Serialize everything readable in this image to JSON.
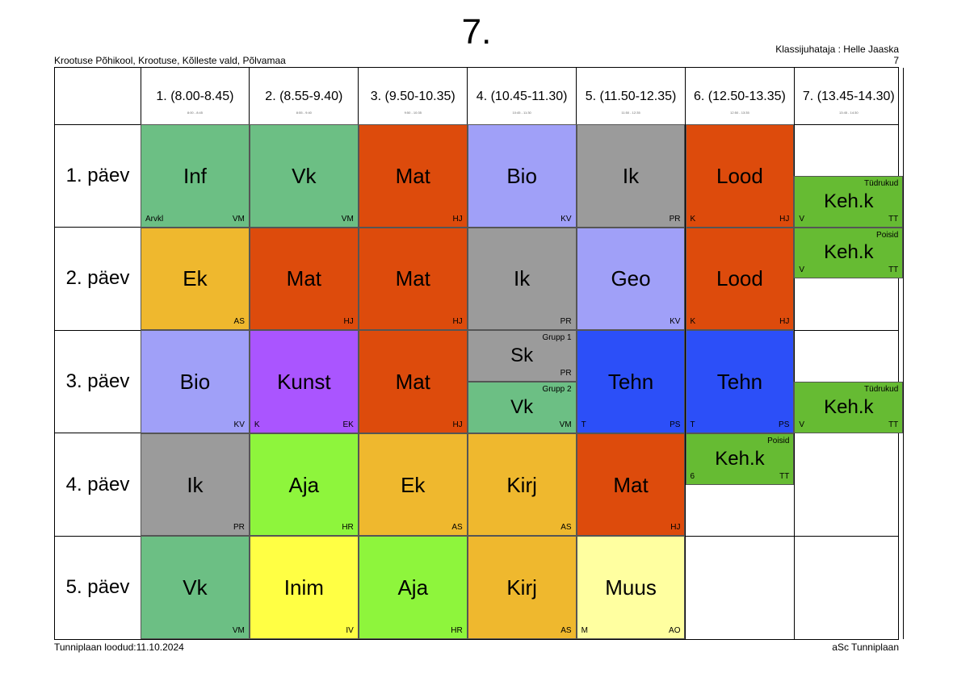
{
  "header": {
    "title": "7.",
    "school": "Krootuse Põhikool, Krootuse, Kõlleste vald, Põlvamaa",
    "teacher": "Klassijuhataja : Helle Jaaska",
    "class_number": "7"
  },
  "footer": {
    "created": "Tunniplaan loodud:11.10.2024",
    "software": "aSc Tunniplaan"
  },
  "periods": [
    {
      "label": "1. (8.00-8.45)",
      "sub": "8:00 - 8:45"
    },
    {
      "label": "2. (8.55-9.40)",
      "sub": "8:55 - 9:40"
    },
    {
      "label": "3. (9.50-10.35)",
      "sub": "9:50 - 10:35"
    },
    {
      "label": "4. (10.45-11.30)",
      "sub": "10:45 - 11:30"
    },
    {
      "label": "5. (11.50-12.35)",
      "sub": "11:50 - 12:35"
    },
    {
      "label": "6. (12.50-13.35)",
      "sub": "12:50 - 13:35"
    },
    {
      "label": "7. (13.45-14.30)",
      "sub": "13:45 - 14:30"
    }
  ],
  "days": [
    "1. päev",
    "2. päev",
    "3. päev",
    "4. päev",
    "5. päev"
  ],
  "colors": {
    "green": "#6cbf84",
    "red": "#dd4b0c",
    "lavender": "#a0a0f8",
    "gray": "#9b9b9b",
    "orange": "#efb82e",
    "purple": "#aa55ff",
    "blue": "#2c4ff8",
    "lime": "#8ef53c",
    "yellow": "#ffff44",
    "paleyellow": "#ffffa0",
    "pe": "#66bb33"
  },
  "lessons": [
    {
      "day": 0,
      "period": 0,
      "subject": "Inf",
      "teacher": "VM",
      "room": "Arvkl",
      "color": "#6cbf84"
    },
    {
      "day": 0,
      "period": 1,
      "subject": "Vk",
      "teacher": "VM",
      "color": "#6cbf84"
    },
    {
      "day": 0,
      "period": 2,
      "subject": "Mat",
      "teacher": "HJ",
      "color": "#dd4b0c"
    },
    {
      "day": 0,
      "period": 3,
      "subject": "Bio",
      "teacher": "KV",
      "color": "#a0a0f8"
    },
    {
      "day": 0,
      "period": 4,
      "subject": "Ik",
      "teacher": "PR",
      "color": "#9b9b9b"
    },
    {
      "day": 0,
      "period": 5,
      "subject": "Lood",
      "teacher": "HJ",
      "room": "K",
      "color": "#dd4b0c"
    },
    {
      "day": 0,
      "period": 6,
      "subject": "Keh.k",
      "teacher": "TT",
      "room": "V",
      "group": "Tüdrukud",
      "color": "#66bb33",
      "slot": "bottom"
    },
    {
      "day": 1,
      "period": 0,
      "subject": "Ek",
      "teacher": "AS",
      "color": "#efb82e"
    },
    {
      "day": 1,
      "period": 1,
      "subject": "Mat",
      "teacher": "HJ",
      "color": "#dd4b0c"
    },
    {
      "day": 1,
      "period": 2,
      "subject": "Mat",
      "teacher": "HJ",
      "color": "#dd4b0c"
    },
    {
      "day": 1,
      "period": 3,
      "subject": "Ik",
      "teacher": "PR",
      "color": "#9b9b9b"
    },
    {
      "day": 1,
      "period": 4,
      "subject": "Geo",
      "teacher": "KV",
      "color": "#a0a0f8"
    },
    {
      "day": 1,
      "period": 5,
      "subject": "Lood",
      "teacher": "HJ",
      "room": "K",
      "color": "#dd4b0c"
    },
    {
      "day": 1,
      "period": 6,
      "subject": "Keh.k",
      "teacher": "TT",
      "room": "V",
      "group": "Poisid",
      "color": "#66bb33",
      "slot": "top"
    },
    {
      "day": 2,
      "period": 0,
      "subject": "Bio",
      "teacher": "KV",
      "color": "#a0a0f8"
    },
    {
      "day": 2,
      "period": 1,
      "subject": "Kunst",
      "teacher": "EK",
      "room": "K",
      "color": "#aa55ff"
    },
    {
      "day": 2,
      "period": 2,
      "subject": "Mat",
      "teacher": "HJ",
      "color": "#dd4b0c"
    },
    {
      "day": 2,
      "period": 3,
      "subject": "Sk",
      "teacher": "PR",
      "group": "Grupp 1",
      "color": "#9b9b9b",
      "slot": "top"
    },
    {
      "day": 2,
      "period": 3,
      "subject": "Vk",
      "teacher": "VM",
      "group": "Grupp 2",
      "color": "#6cbf84",
      "slot": "bottom"
    },
    {
      "day": 2,
      "period": 4,
      "subject": "Tehn",
      "teacher": "PS",
      "room": "T",
      "color": "#2c4ff8"
    },
    {
      "day": 2,
      "period": 5,
      "subject": "Tehn",
      "teacher": "PS",
      "room": "T",
      "color": "#2c4ff8"
    },
    {
      "day": 2,
      "period": 6,
      "subject": "Keh.k",
      "teacher": "TT",
      "room": "V",
      "group": "Tüdrukud",
      "color": "#66bb33",
      "slot": "bottom"
    },
    {
      "day": 3,
      "period": 0,
      "subject": "Ik",
      "teacher": "PR",
      "color": "#9b9b9b"
    },
    {
      "day": 3,
      "period": 1,
      "subject": "Aja",
      "teacher": "HR",
      "color": "#8ef53c"
    },
    {
      "day": 3,
      "period": 2,
      "subject": "Ek",
      "teacher": "AS",
      "color": "#efb82e"
    },
    {
      "day": 3,
      "period": 3,
      "subject": "Kirj",
      "teacher": "AS",
      "color": "#efb82e"
    },
    {
      "day": 3,
      "period": 4,
      "subject": "Mat",
      "teacher": "HJ",
      "color": "#dd4b0c"
    },
    {
      "day": 3,
      "period": 5,
      "subject": "Keh.k",
      "teacher": "TT",
      "room": "6",
      "group": "Poisid",
      "color": "#66bb33",
      "slot": "top"
    },
    {
      "day": 4,
      "period": 0,
      "subject": "Vk",
      "teacher": "VM",
      "color": "#6cbf84"
    },
    {
      "day": 4,
      "period": 1,
      "subject": "Inim",
      "teacher": "IV",
      "color": "#ffff44"
    },
    {
      "day": 4,
      "period": 2,
      "subject": "Aja",
      "teacher": "HR",
      "color": "#8ef53c"
    },
    {
      "day": 4,
      "period": 3,
      "subject": "Kirj",
      "teacher": "AS",
      "color": "#efb82e"
    },
    {
      "day": 4,
      "period": 4,
      "subject": "Muus",
      "teacher": "AO",
      "room": "M",
      "color": "#ffffa0"
    }
  ]
}
